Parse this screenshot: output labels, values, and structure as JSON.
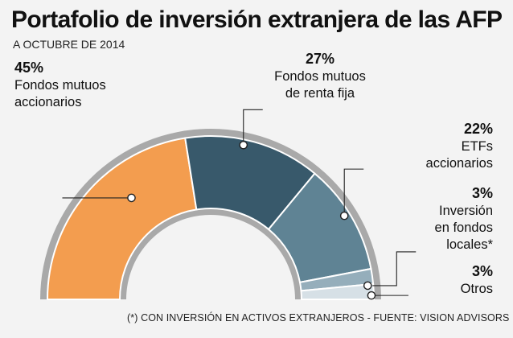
{
  "header": {
    "title": "Portafolio de inversión extranjera de las AFP",
    "subtitle": "A OCTUBRE DE 2014"
  },
  "footnote": "(*) CON INVERSIÓN EN ACTIVOS EXTRANJEROS - FUENTE: VISION ADVISORS",
  "chart_data": {
    "type": "pie",
    "shape": "half-donut",
    "title": "Portafolio de inversión extranjera de las AFP",
    "subtitle": "A OCTUBRE DE 2014",
    "unit": "%",
    "categories": [
      "Fondos mutuos accionarios",
      "Fondos mutuos de renta fija",
      "ETFs accionarios",
      "Inversión en fondos locales*",
      "Otros"
    ],
    "values": [
      45,
      27,
      22,
      3,
      3
    ],
    "slices": [
      {
        "name": "fondos-mutuos-accionarios",
        "value": 45,
        "pct_label": "45%",
        "label_lines": [
          "Fondos mutuos",
          "accionarios"
        ],
        "color": "#f39d4f"
      },
      {
        "name": "fondos-mutuos-renta-fija",
        "value": 27,
        "pct_label": "27%",
        "label_lines": [
          "Fondos mutuos",
          "de renta fija"
        ],
        "color": "#38596b"
      },
      {
        "name": "etfs-accionarios",
        "value": 22,
        "pct_label": "22%",
        "label_lines": [
          "ETFs",
          "accionarios"
        ],
        "color": "#5f8394"
      },
      {
        "name": "inversion-fondos-locales",
        "value": 3,
        "pct_label": "3%",
        "label_lines": [
          "Inversión",
          "en fondos",
          "locales*"
        ],
        "color": "#95aebb"
      },
      {
        "name": "otros",
        "value": 3,
        "pct_label": "3%",
        "label_lines": [
          "Otros"
        ],
        "color": "#d6e0e6"
      }
    ],
    "colors": {
      "outer_ring": "#a9a9a9",
      "slice_border": "#ffffff",
      "leader_line": "#222222",
      "background": "#f3f3f3"
    }
  }
}
